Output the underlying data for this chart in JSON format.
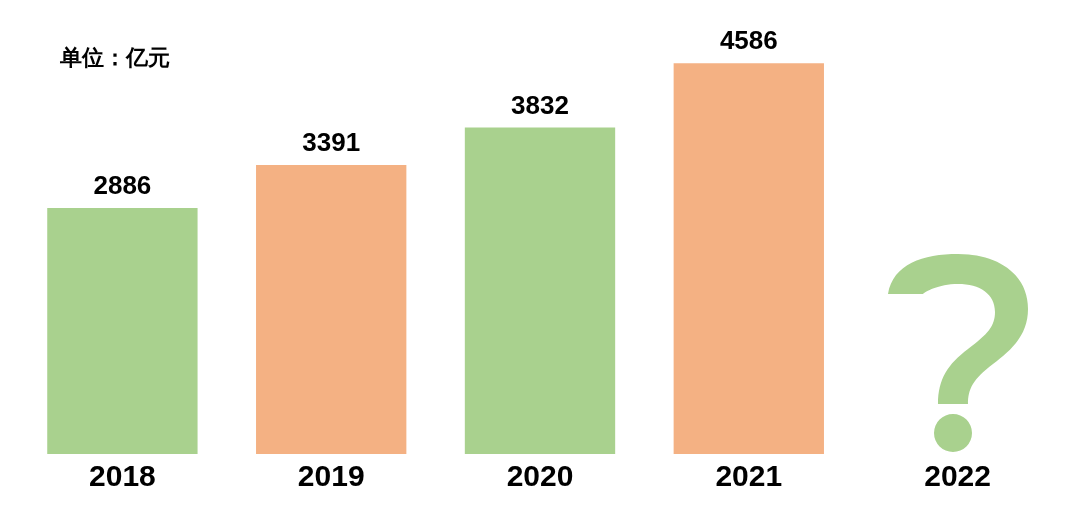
{
  "chart_data": {
    "type": "bar",
    "categories": [
      "2018",
      "2019",
      "2020",
      "2021",
      "2022"
    ],
    "values": [
      2886,
      3391,
      3832,
      4586,
      null
    ],
    "colors": [
      "#a9d18e",
      "#f4b183",
      "#a9d18e",
      "#f4b183",
      "#a9d18e"
    ],
    "data_labels": true,
    "annotations": [
      "单位：亿元"
    ],
    "tick_labels": "x",
    "grid": false,
    "legend": false
  }
}
